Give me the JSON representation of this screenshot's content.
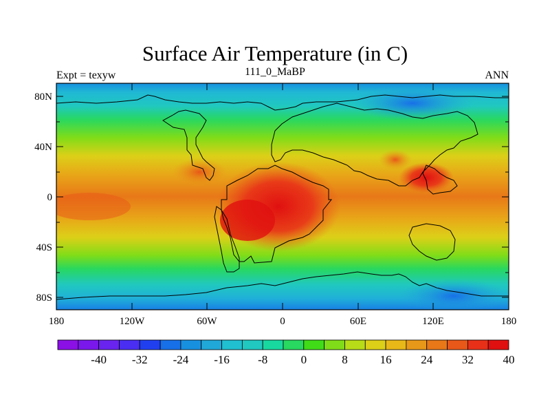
{
  "title": "Surface Air Temperature (in C)",
  "left_label": "Expt = texyw",
  "center_label": "111_0_MaBP",
  "right_label": "ANN",
  "lat_ticks": [
    "80N",
    "40N",
    "0",
    "40S",
    "80S"
  ],
  "lon_ticks": [
    "180",
    "120W",
    "60W",
    "0",
    "60E",
    "120E",
    "180"
  ],
  "colorbar": {
    "labels": [
      "-40",
      "-32",
      "-24",
      "-16",
      "-8",
      "0",
      "8",
      "16",
      "24",
      "32",
      "40"
    ],
    "colors": [
      "#8a10e6",
      "#7a18ec",
      "#6a24f0",
      "#4a2ef2",
      "#2040f0",
      "#1870e8",
      "#1890e0",
      "#20a8d8",
      "#20c0d0",
      "#20c8c0",
      "#18d8a0",
      "#28d860",
      "#40dc18",
      "#80dc18",
      "#b8dc18",
      "#dcd018",
      "#e8b818",
      "#e89818",
      "#e87818",
      "#e85818",
      "#e83018",
      "#e01010"
    ]
  }
}
